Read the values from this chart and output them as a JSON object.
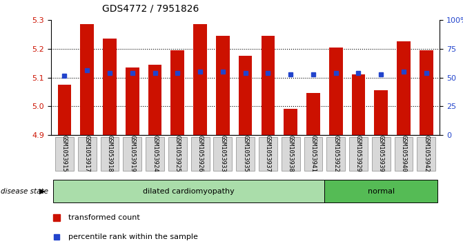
{
  "title": "GDS4772 / 7951826",
  "samples": [
    "GSM1053915",
    "GSM1053917",
    "GSM1053918",
    "GSM1053919",
    "GSM1053924",
    "GSM1053925",
    "GSM1053926",
    "GSM1053933",
    "GSM1053935",
    "GSM1053937",
    "GSM1053938",
    "GSM1053941",
    "GSM1053922",
    "GSM1053929",
    "GSM1053939",
    "GSM1053940",
    "GSM1053942"
  ],
  "bar_values": [
    5.075,
    5.285,
    5.235,
    5.135,
    5.145,
    5.195,
    5.285,
    5.245,
    5.175,
    5.245,
    4.99,
    5.045,
    5.205,
    5.11,
    5.055,
    5.225,
    5.195
  ],
  "percentile_values": [
    5.105,
    5.125,
    5.115,
    5.115,
    5.115,
    5.115,
    5.12,
    5.12,
    5.115,
    5.115,
    5.11,
    5.11,
    5.115,
    5.115,
    5.11,
    5.12,
    5.115
  ],
  "n_dilated": 12,
  "dilated_label": "dilated cardiomyopathy",
  "normal_label": "normal",
  "disease_state_label": "disease state",
  "ylim_left": [
    4.9,
    5.3
  ],
  "ylim_right": [
    0,
    100
  ],
  "yticks_left": [
    4.9,
    5.0,
    5.1,
    5.2,
    5.3
  ],
  "yticks_right": [
    0,
    25,
    50,
    75,
    100
  ],
  "ytick_right_labels": [
    "0",
    "25",
    "50",
    "75",
    "100%"
  ],
  "bar_color": "#cc1100",
  "blue_color": "#2244cc",
  "dilated_color": "#aaddaa",
  "normal_color": "#55bb55",
  "label_bg_color": "#d8d8d8",
  "legend_tc": "transformed count",
  "legend_pr": "percentile rank within the sample",
  "baseline": 4.9,
  "grid_lines": [
    5.0,
    5.1,
    5.2
  ]
}
